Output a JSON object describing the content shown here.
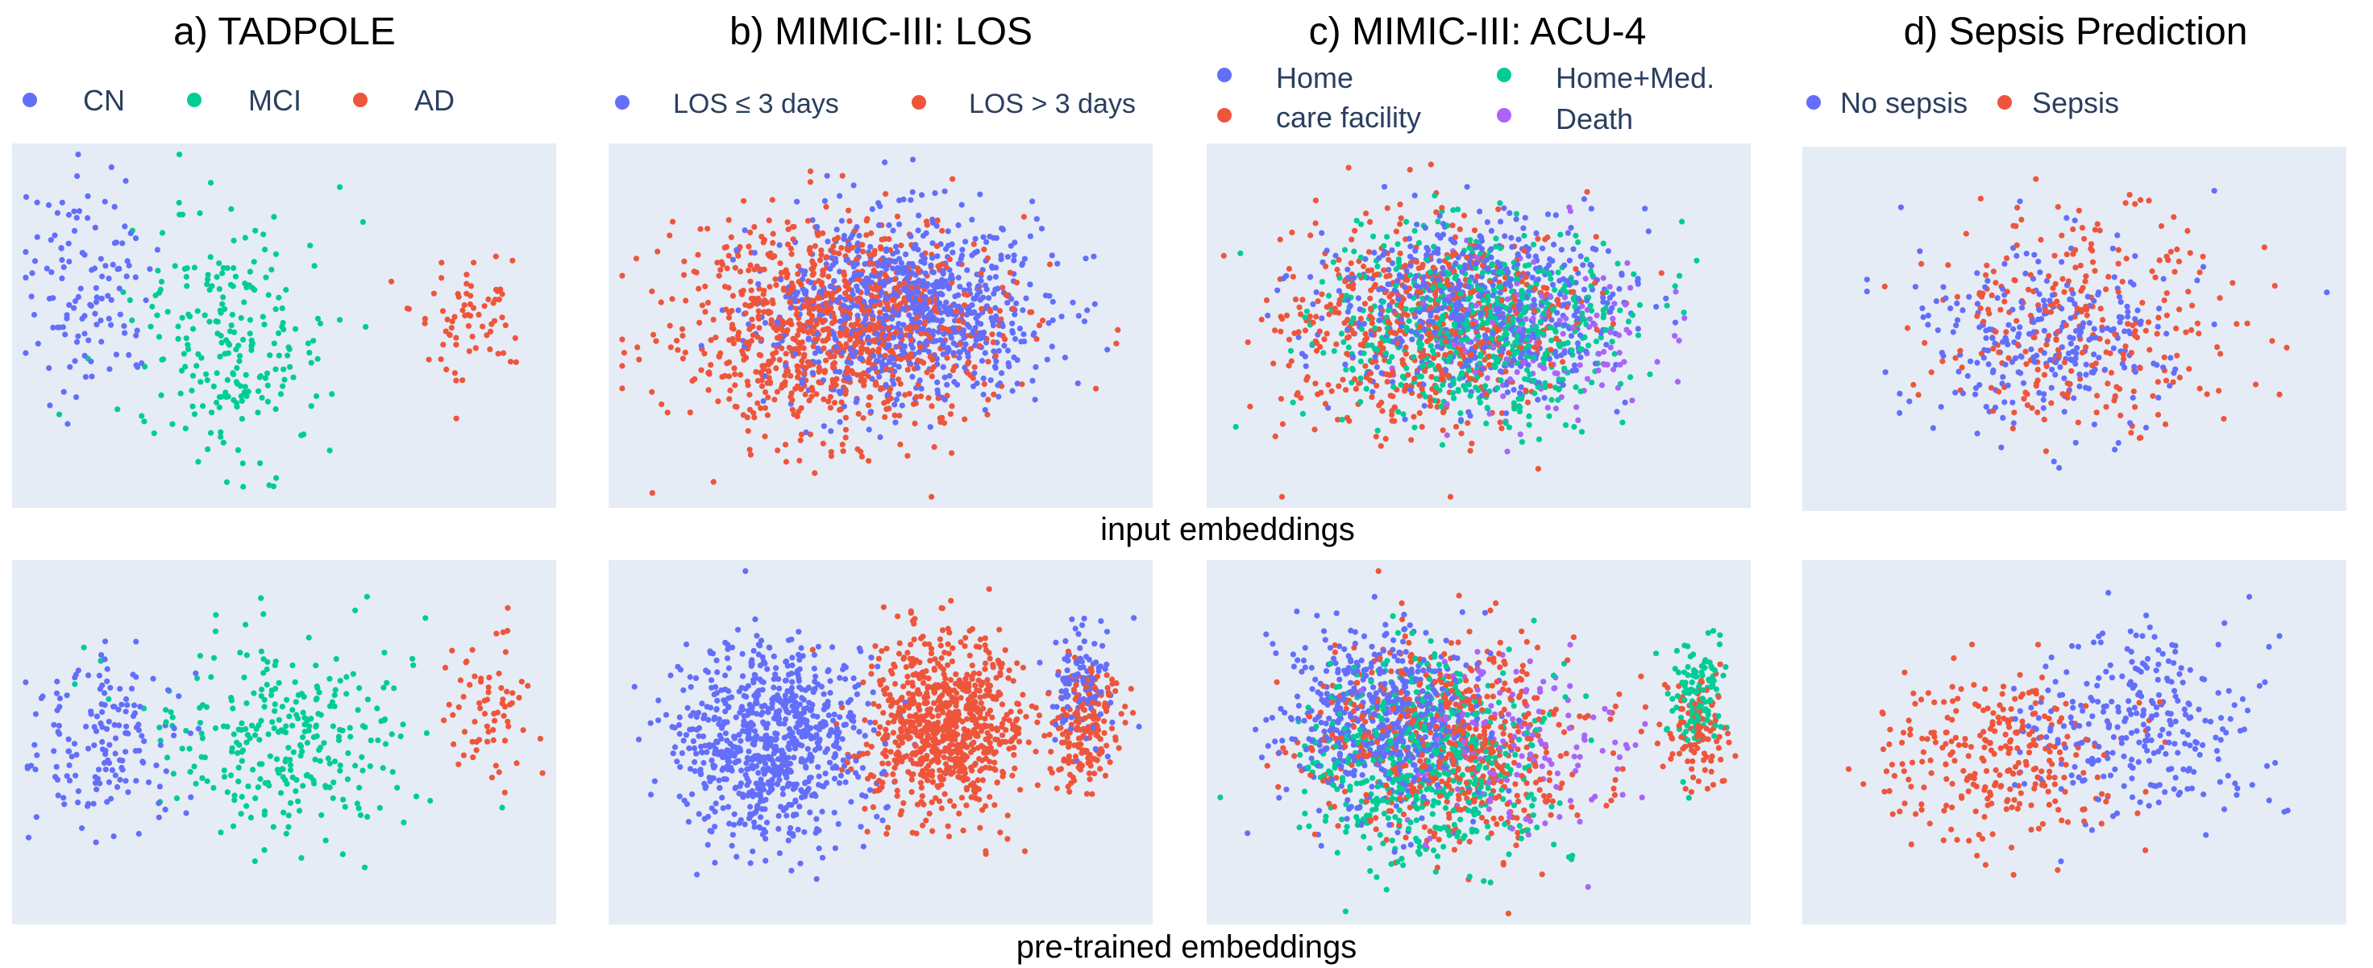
{
  "figure": {
    "row_labels": [
      "input embeddings",
      "pre-trained embeddings"
    ]
  },
  "colors": {
    "blue": "#636efa",
    "green": "#00cc96",
    "red": "#ef553b",
    "purple": "#ab63fa",
    "panel_bg": "#e5ecf6",
    "text": "#2a3f5f"
  },
  "chart_data": [
    {
      "id": "tadpole",
      "type": "scatter",
      "title": "a) TADPOLE",
      "legend": [
        {
          "label": "CN",
          "color": "#636efa"
        },
        {
          "label": "MCI",
          "color": "#00cc96"
        },
        {
          "label": "AD",
          "color": "#ef553b"
        }
      ],
      "rows": [
        {
          "embedding": "input embeddings",
          "approx_points": 420,
          "clusters": [
            {
              "class": "CN",
              "cx": 0.14,
              "cy": 0.38,
              "sx": 0.1,
              "sy": 0.26,
              "n": 120
            },
            {
              "class": "MCI",
              "cx": 0.4,
              "cy": 0.55,
              "sx": 0.15,
              "sy": 0.28,
              "n": 230
            },
            {
              "class": "AD",
              "cx": 0.84,
              "cy": 0.46,
              "sx": 0.09,
              "sy": 0.15,
              "n": 70
            }
          ]
        },
        {
          "embedding": "pre-trained embeddings",
          "approx_points": 520,
          "clusters": [
            {
              "class": "CN",
              "cx": 0.16,
              "cy": 0.5,
              "sx": 0.11,
              "sy": 0.22,
              "n": 160
            },
            {
              "class": "MCI",
              "cx": 0.5,
              "cy": 0.5,
              "sx": 0.19,
              "sy": 0.24,
              "n": 290
            },
            {
              "class": "AD",
              "cx": 0.88,
              "cy": 0.38,
              "sx": 0.07,
              "sy": 0.18,
              "n": 70
            }
          ]
        }
      ]
    },
    {
      "id": "los",
      "type": "scatter",
      "title": "b) MIMIC-III: LOS",
      "legend": [
        {
          "label": "LOS ≤ 3 days",
          "color": "#636efa"
        },
        {
          "label": "LOS > 3 days",
          "color": "#ef553b"
        }
      ],
      "rows": [
        {
          "embedding": "input embeddings",
          "approx_points": 1900,
          "clusters": [
            {
              "class": "LOS ≤ 3 days",
              "cx": 0.55,
              "cy": 0.45,
              "sx": 0.21,
              "sy": 0.2,
              "n": 900
            },
            {
              "class": "LOS > 3 days",
              "cx": 0.42,
              "cy": 0.5,
              "sx": 0.24,
              "sy": 0.24,
              "n": 1000
            }
          ]
        },
        {
          "embedding": "pre-trained embeddings",
          "approx_points": 2000,
          "clusters": [
            {
              "class": "LOS ≤ 3 days",
              "cx": 0.3,
              "cy": 0.5,
              "sx": 0.14,
              "sy": 0.22,
              "n": 800
            },
            {
              "class": "LOS > 3 days",
              "cx": 0.62,
              "cy": 0.45,
              "sx": 0.12,
              "sy": 0.2,
              "n": 800
            },
            {
              "class": "LOS ≤ 3 days",
              "cx": 0.87,
              "cy": 0.35,
              "sx": 0.05,
              "sy": 0.14,
              "n": 120
            },
            {
              "class": "LOS > 3 days",
              "cx": 0.88,
              "cy": 0.45,
              "sx": 0.05,
              "sy": 0.14,
              "n": 180
            }
          ]
        }
      ]
    },
    {
      "id": "acu4",
      "type": "scatter",
      "title": "c) MIMIC-III: ACU-4",
      "legend": [
        {
          "label": "Home",
          "color": "#636efa"
        },
        {
          "label": "Home+Med.",
          "color": "#00cc96"
        },
        {
          "label": "care facility",
          "color": "#ef553b"
        },
        {
          "label": "Death",
          "color": "#ab63fa"
        }
      ],
      "rows": [
        {
          "embedding": "input embeddings",
          "approx_points": 2000,
          "clusters": [
            {
              "class": "Home",
              "cx": 0.5,
              "cy": 0.45,
              "sx": 0.22,
              "sy": 0.2,
              "n": 600
            },
            {
              "class": "Home+Med.",
              "cx": 0.5,
              "cy": 0.5,
              "sx": 0.22,
              "sy": 0.22,
              "n": 650
            },
            {
              "class": "care facility",
              "cx": 0.4,
              "cy": 0.5,
              "sx": 0.22,
              "sy": 0.24,
              "n": 600
            },
            {
              "class": "Death",
              "cx": 0.6,
              "cy": 0.55,
              "sx": 0.18,
              "sy": 0.2,
              "n": 150
            }
          ]
        },
        {
          "embedding": "pre-trained embeddings",
          "approx_points": 2100,
          "clusters": [
            {
              "class": "Home",
              "cx": 0.32,
              "cy": 0.45,
              "sx": 0.15,
              "sy": 0.2,
              "n": 600
            },
            {
              "class": "Home+Med.",
              "cx": 0.4,
              "cy": 0.55,
              "sx": 0.18,
              "sy": 0.22,
              "n": 550
            },
            {
              "class": "care facility",
              "cx": 0.45,
              "cy": 0.5,
              "sx": 0.2,
              "sy": 0.24,
              "n": 600
            },
            {
              "class": "Death",
              "cx": 0.55,
              "cy": 0.5,
              "sx": 0.18,
              "sy": 0.2,
              "n": 150
            },
            {
              "class": "Home+Med.",
              "cx": 0.9,
              "cy": 0.38,
              "sx": 0.04,
              "sy": 0.12,
              "n": 120
            },
            {
              "class": "care facility",
              "cx": 0.9,
              "cy": 0.48,
              "sx": 0.05,
              "sy": 0.14,
              "n": 100
            }
          ]
        }
      ]
    },
    {
      "id": "sepsis",
      "type": "scatter",
      "title": "d) Sepsis Prediction",
      "legend": [
        {
          "label": "No sepsis",
          "color": "#636efa"
        },
        {
          "label": "Sepsis",
          "color": "#ef553b"
        }
      ],
      "rows": [
        {
          "embedding": "input embeddings",
          "approx_points": 560,
          "clusters": [
            {
              "class": "No sepsis",
              "cx": 0.45,
              "cy": 0.52,
              "sx": 0.2,
              "sy": 0.22,
              "n": 280
            },
            {
              "class": "Sepsis",
              "cx": 0.52,
              "cy": 0.48,
              "sx": 0.24,
              "sy": 0.24,
              "n": 280
            }
          ]
        },
        {
          "embedding": "pre-trained embeddings",
          "approx_points": 560,
          "clusters": [
            {
              "class": "No sepsis",
              "cx": 0.62,
              "cy": 0.45,
              "sx": 0.18,
              "sy": 0.2,
              "n": 280
            },
            {
              "class": "Sepsis",
              "cx": 0.36,
              "cy": 0.55,
              "sx": 0.18,
              "sy": 0.2,
              "n": 280
            }
          ]
        }
      ]
    }
  ]
}
